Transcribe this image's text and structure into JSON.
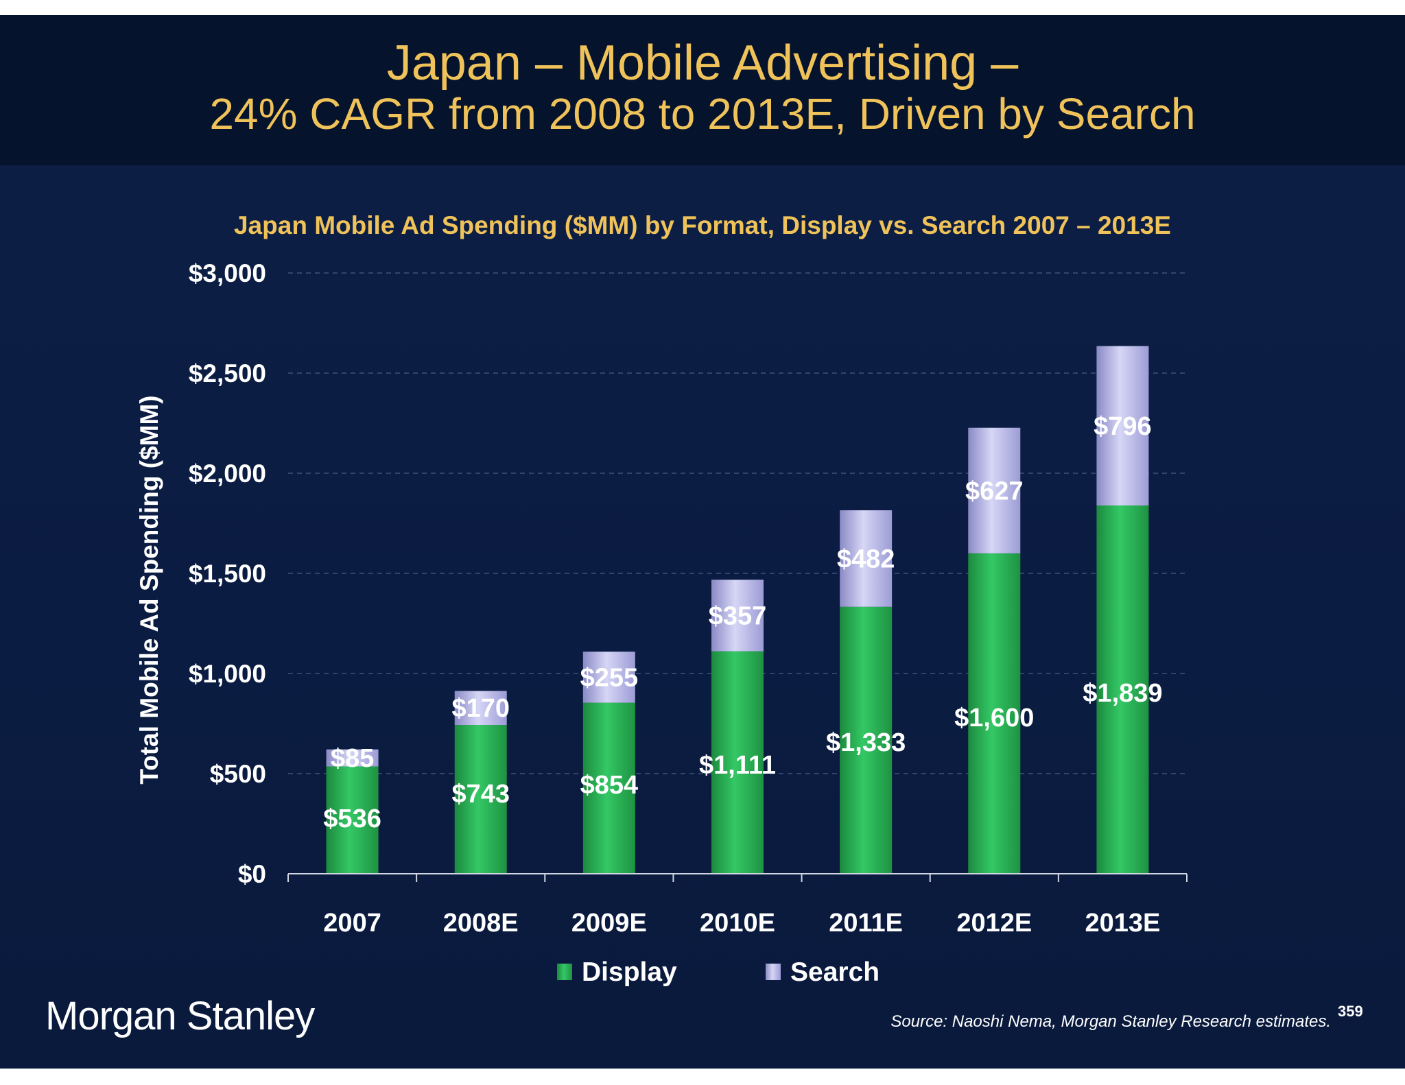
{
  "slide": {
    "title_line1": "Japan – Mobile Advertising –",
    "title_line2": "24% CAGR from 2008 to 2013E, Driven by Search",
    "brand": "Morgan Stanley",
    "source": "Source: Naoshi Nema, Morgan Stanley Research estimates.",
    "page_number": "359"
  },
  "colors": {
    "display": "#2dbe5a",
    "search": "#b8b8ea",
    "title": "#f0c35a",
    "background": "#0b1c42"
  },
  "chart_data": {
    "type": "bar",
    "stacked": true,
    "title": "Japan Mobile Ad Spending ($MM) by Format, Display vs. Search 2007 – 2013E",
    "ylabel": "Total Mobile Ad Spending ($MM)",
    "xlabel": "",
    "ylim": [
      0,
      3000
    ],
    "yticks": [
      0,
      500,
      1000,
      1500,
      2000,
      2500,
      3000
    ],
    "ytick_labels": [
      "$0",
      "$500",
      "$1,000",
      "$1,500",
      "$2,000",
      "$2,500",
      "$3,000"
    ],
    "grid": true,
    "legend_position": "bottom",
    "categories": [
      "2007",
      "2008E",
      "2009E",
      "2010E",
      "2011E",
      "2012E",
      "2013E"
    ],
    "series": [
      {
        "name": "Display",
        "values": [
          536,
          743,
          854,
          1111,
          1333,
          1600,
          1839
        ],
        "labels": [
          "$536",
          "$743",
          "$854",
          "$1,111",
          "$1,333",
          "$1,600",
          "$1,839"
        ]
      },
      {
        "name": "Search",
        "values": [
          85,
          170,
          255,
          357,
          482,
          627,
          796
        ],
        "labels": [
          "$85",
          "$170",
          "$255",
          "$357",
          "$482",
          "$627",
          "$796"
        ]
      }
    ]
  }
}
